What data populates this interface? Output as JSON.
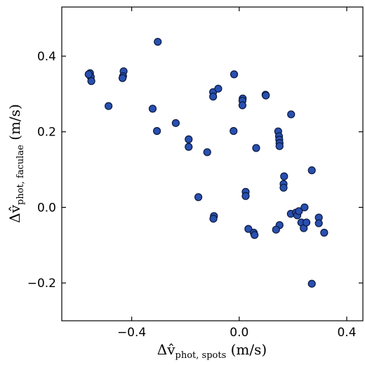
{
  "chart_data": {
    "type": "scatter",
    "xlabel": {
      "main": "Δv̂",
      "sub": "phot, spots",
      "unit": " (m/s)"
    },
    "ylabel": {
      "main": "Δv̂",
      "sub": "phot, faculae",
      "unit": " (m/s)"
    },
    "xlim": [
      -0.66,
      0.46
    ],
    "ylim": [
      -0.3,
      0.53
    ],
    "xticks": [
      -0.4,
      0.0,
      0.4
    ],
    "xtick_labels": [
      "−0.4",
      "0.0",
      "0.4"
    ],
    "yticks": [
      -0.2,
      0.0,
      0.2,
      0.4
    ],
    "ytick_labels": [
      "−0.2",
      "0.0",
      "0.2",
      "0.4"
    ],
    "grid": false,
    "marker_color": "#2950b0",
    "series": [
      {
        "points": [
          [
            -0.555,
            0.355
          ],
          [
            -0.552,
            0.345
          ],
          [
            -0.55,
            0.334
          ],
          [
            -0.56,
            0.352
          ],
          [
            -0.43,
            0.36
          ],
          [
            -0.432,
            0.347
          ],
          [
            -0.434,
            0.342
          ],
          [
            -0.486,
            0.268
          ],
          [
            -0.303,
            0.438
          ],
          [
            -0.322,
            0.261
          ],
          [
            -0.306,
            0.202
          ],
          [
            -0.236,
            0.223
          ],
          [
            -0.188,
            0.18
          ],
          [
            -0.188,
            0.16
          ],
          [
            -0.119,
            0.146
          ],
          [
            -0.152,
            0.027
          ],
          [
            -0.097,
            0.305
          ],
          [
            -0.097,
            0.293
          ],
          [
            -0.078,
            0.314
          ],
          [
            -0.019,
            0.352
          ],
          [
            -0.021,
            0.202
          ],
          [
            0.013,
            0.288
          ],
          [
            0.012,
            0.282
          ],
          [
            0.012,
            0.27
          ],
          [
            0.098,
            0.298
          ],
          [
            0.099,
            0.296
          ],
          [
            0.063,
            0.157
          ],
          [
            -0.094,
            -0.023
          ],
          [
            -0.096,
            -0.03
          ],
          [
            0.024,
            0.041
          ],
          [
            0.024,
            0.03
          ],
          [
            0.034,
            -0.057
          ],
          [
            0.054,
            -0.067
          ],
          [
            0.057,
            -0.073
          ],
          [
            0.145,
            0.201
          ],
          [
            0.148,
            0.188
          ],
          [
            0.149,
            0.179
          ],
          [
            0.15,
            0.17
          ],
          [
            0.15,
            0.162
          ],
          [
            0.167,
            0.082
          ],
          [
            0.165,
            0.062
          ],
          [
            0.165,
            0.052
          ],
          [
            0.193,
            0.246
          ],
          [
            0.192,
            -0.017
          ],
          [
            0.15,
            -0.047
          ],
          [
            0.137,
            -0.059
          ],
          [
            0.211,
            -0.014
          ],
          [
            0.216,
            -0.021
          ],
          [
            0.222,
            -0.01
          ],
          [
            0.231,
            -0.04
          ],
          [
            0.24,
            -0.055
          ],
          [
            0.243,
            0.0
          ],
          [
            0.25,
            -0.04
          ],
          [
            0.27,
            0.098
          ],
          [
            0.27,
            -0.202
          ],
          [
            0.296,
            -0.027
          ],
          [
            0.296,
            -0.042
          ],
          [
            0.316,
            -0.067
          ]
        ]
      }
    ]
  }
}
